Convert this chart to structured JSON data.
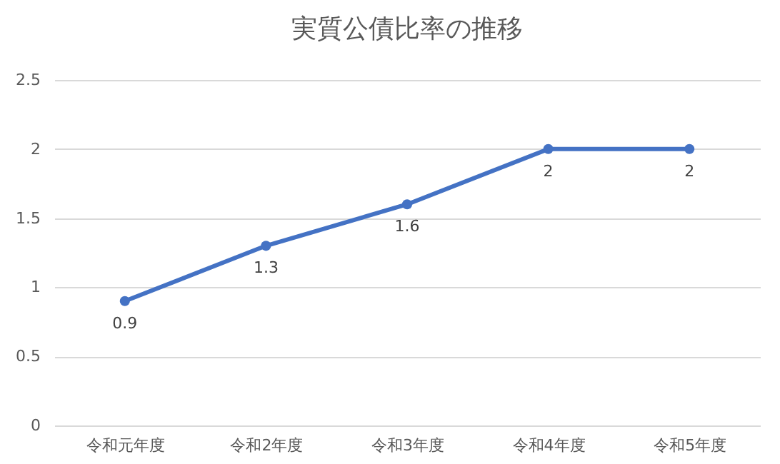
{
  "chart_data": {
    "type": "line",
    "title": "実質公債比率の推移",
    "categories": [
      "令和元年度",
      "令和2年度",
      "令和3年度",
      "令和4年度",
      "令和5年度"
    ],
    "series": [
      {
        "color": "#4472c4",
        "values": [
          0.9,
          1.3,
          1.6,
          2,
          2
        ]
      }
    ],
    "ylim": [
      0,
      2.5
    ],
    "yticks": [
      0,
      0.5,
      1,
      1.5,
      2,
      2.5
    ],
    "grid": "y",
    "marker": "circle",
    "line_style": "solid",
    "data_labels": true,
    "legend": false
  }
}
